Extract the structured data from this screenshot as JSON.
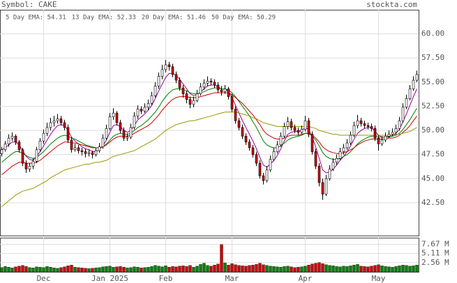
{
  "chart_data": {
    "type": "candlestick",
    "title": "Symbol: CAKE",
    "source": "stockta.com",
    "categories": [
      null,
      null,
      null,
      null,
      null,
      null,
      null,
      null,
      null,
      null,
      null,
      null,
      "Dec",
      null,
      null,
      null,
      null,
      null,
      null,
      null,
      null,
      null,
      null,
      null,
      null,
      null,
      null,
      null,
      null,
      null,
      null,
      "Jan 2025",
      null,
      null,
      null,
      null,
      null,
      null,
      null,
      null,
      null,
      null,
      null,
      null,
      null,
      null,
      null,
      "Feb",
      null,
      null,
      null,
      null,
      null,
      null,
      null,
      null,
      null,
      null,
      null,
      null,
      null,
      null,
      null,
      null,
      null,
      null,
      "Mar",
      null,
      null,
      null,
      null,
      null,
      null,
      null,
      null,
      null,
      null,
      null,
      null,
      null,
      null,
      null,
      null,
      null,
      null,
      null,
      null,
      "Apr",
      null,
      null,
      null,
      null,
      null,
      null,
      null,
      null,
      null,
      null,
      null,
      null,
      null,
      null,
      null,
      null,
      null,
      null,
      null,
      null,
      "May",
      null,
      null,
      null,
      null,
      null,
      null,
      null,
      null,
      null,
      null,
      null
    ],
    "open": [
      47.6,
      48.0,
      48.6,
      49.2,
      49.4,
      48.8,
      48.0,
      46.6,
      46.0,
      46.3,
      46.8,
      48.0,
      48.9,
      49.7,
      50.3,
      50.8,
      51.0,
      51.2,
      50.8,
      50.3,
      49.0,
      48.0,
      48.2,
      47.9,
      47.8,
      47.6,
      47.7,
      47.5,
      47.9,
      48.3,
      49.2,
      50.2,
      51.4,
      51.8,
      50.8,
      50.0,
      49.2,
      49.3,
      50.3,
      51.5,
      52.2,
      52.0,
      52.4,
      52.8,
      53.6,
      54.6,
      55.6,
      56.3,
      56.8,
      56.6,
      55.8,
      55.2,
      54.4,
      53.8,
      53.2,
      52.7,
      53.1,
      53.8,
      54.5,
      54.9,
      55.1,
      55.0,
      54.7,
      54.2,
      54.0,
      54.3,
      53.5,
      52.2,
      51.0,
      50.3,
      49.4,
      48.8,
      48.2,
      47.5,
      46.6,
      45.3,
      44.8,
      45.9,
      47.0,
      47.8,
      48.5,
      49.4,
      50.4,
      50.9,
      50.3,
      50.0,
      49.8,
      50.1,
      51.0,
      49.6,
      47.8,
      46.3,
      44.6,
      43.4,
      45.0,
      46.0,
      46.7,
      47.1,
      47.8,
      48.2,
      48.7,
      49.5,
      50.5,
      51.0,
      50.7,
      50.5,
      50.4,
      50.2,
      49.2,
      48.6,
      49.0,
      49.4,
      49.6,
      49.8,
      50.2,
      51.0,
      52.4,
      53.3,
      54.3,
      55.2
    ],
    "high": [
      48.3,
      48.9,
      49.6,
      49.8,
      49.6,
      49.0,
      48.2,
      46.9,
      46.6,
      47.1,
      48.3,
      49.2,
      50.1,
      50.8,
      51.3,
      51.5,
      51.7,
      51.5,
      51.1,
      50.6,
      49.3,
      48.6,
      48.5,
      48.2,
      48.1,
      48.0,
      47.9,
      48.2,
      48.7,
      49.6,
      50.6,
      51.8,
      52.3,
      52.0,
      51.1,
      50.3,
      49.7,
      50.7,
      51.9,
      52.6,
      52.5,
      52.8,
      53.2,
      54.0,
      55.0,
      56.0,
      56.8,
      57.3,
      57.1,
      56.9,
      56.1,
      55.5,
      54.7,
      54.1,
      53.5,
      53.5,
      54.2,
      54.9,
      55.3,
      55.6,
      55.4,
      55.3,
      55.0,
      54.6,
      54.7,
      54.5,
      53.8,
      52.5,
      51.3,
      50.6,
      49.7,
      49.1,
      48.5,
      47.8,
      46.9,
      45.6,
      46.3,
      47.4,
      48.2,
      48.9,
      49.8,
      50.8,
      51.4,
      51.2,
      50.6,
      50.3,
      50.5,
      51.5,
      51.3,
      49.9,
      48.1,
      46.6,
      45.0,
      45.4,
      46.4,
      47.1,
      47.5,
      48.2,
      48.6,
      49.1,
      49.9,
      50.9,
      51.6,
      51.3,
      51.0,
      50.8,
      50.7,
      50.5,
      49.5,
      49.4,
      49.8,
      50.0,
      50.2,
      50.6,
      51.4,
      52.8,
      53.7,
      54.7,
      55.6,
      56.2
    ],
    "low": [
      47.3,
      47.8,
      48.3,
      48.9,
      48.5,
      47.7,
      46.3,
      45.6,
      45.7,
      46.0,
      46.6,
      47.8,
      48.6,
      49.4,
      50.0,
      50.4,
      50.7,
      50.5,
      50.0,
      48.7,
      47.7,
      47.8,
      47.6,
      47.4,
      47.2,
      47.3,
      47.1,
      47.3,
      47.7,
      48.1,
      49.0,
      50.0,
      51.1,
      50.5,
      49.7,
      48.9,
      48.9,
      49.1,
      50.1,
      51.2,
      51.7,
      51.8,
      52.1,
      52.6,
      53.4,
      54.3,
      55.3,
      56.0,
      56.2,
      55.5,
      54.9,
      54.1,
      53.4,
      52.8,
      52.3,
      52.4,
      52.9,
      53.6,
      54.2,
      54.6,
      54.7,
      54.4,
      53.9,
      53.6,
      53.8,
      53.2,
      51.9,
      50.7,
      50.0,
      49.1,
      48.5,
      47.9,
      47.2,
      46.3,
      45.0,
      44.4,
      44.6,
      45.7,
      46.8,
      47.6,
      48.3,
      49.2,
      50.1,
      50.0,
      49.7,
      49.5,
      49.6,
      49.9,
      49.3,
      47.5,
      46.0,
      44.2,
      42.8,
      43.2,
      44.8,
      45.8,
      46.4,
      46.9,
      47.5,
      48.0,
      48.5,
      49.3,
      50.2,
      50.4,
      50.2,
      50.1,
      49.9,
      48.9,
      47.9,
      48.4,
      48.8,
      49.2,
      49.4,
      49.6,
      50.0,
      50.8,
      52.2,
      53.1,
      54.1,
      55.0
    ],
    "close": [
      48.0,
      48.6,
      49.2,
      49.4,
      48.8,
      48.0,
      46.6,
      46.0,
      46.3,
      46.8,
      48.0,
      48.9,
      49.7,
      50.3,
      50.8,
      51.0,
      51.2,
      50.8,
      50.3,
      49.0,
      48.0,
      48.2,
      47.9,
      47.8,
      47.6,
      47.7,
      47.5,
      47.9,
      48.3,
      49.2,
      50.2,
      51.4,
      51.8,
      50.8,
      50.0,
      49.2,
      49.3,
      50.3,
      51.5,
      52.2,
      52.0,
      52.4,
      52.8,
      53.6,
      54.6,
      55.6,
      56.3,
      56.8,
      56.6,
      55.8,
      55.2,
      54.4,
      53.8,
      53.2,
      52.7,
      53.1,
      53.8,
      54.5,
      54.9,
      55.1,
      55.0,
      54.7,
      54.2,
      54.0,
      54.3,
      53.5,
      52.2,
      51.0,
      50.3,
      49.4,
      48.8,
      48.2,
      47.5,
      46.6,
      45.3,
      44.8,
      45.9,
      47.0,
      47.8,
      48.5,
      49.4,
      50.4,
      50.9,
      50.3,
      50.0,
      49.8,
      50.1,
      51.0,
      49.6,
      47.8,
      46.3,
      44.6,
      43.4,
      45.0,
      46.0,
      46.7,
      47.1,
      47.8,
      48.2,
      48.7,
      49.5,
      50.5,
      51.0,
      50.7,
      50.5,
      50.4,
      50.2,
      49.2,
      48.6,
      49.0,
      49.4,
      49.6,
      49.8,
      50.2,
      51.0,
      52.4,
      53.3,
      54.3,
      55.2,
      55.8
    ],
    "up_color": "#ffffff",
    "down_color": "#cc0000",
    "ylim": [
      39.1,
      62.5
    ],
    "yticks": [
      {
        "value": 42.5,
        "label": "42.50"
      },
      {
        "value": 45,
        "label": "45.00"
      },
      {
        "value": 47.5,
        "label": "47.50"
      },
      {
        "value": 50,
        "label": "50.00"
      },
      {
        "value": 52.5,
        "label": "52.50"
      },
      {
        "value": 55,
        "label": "55.00"
      },
      {
        "value": 57.5,
        "label": "57.50"
      },
      {
        "value": 60,
        "label": "60.00"
      }
    ],
    "grid": true,
    "series": [
      {
        "name": "5 Day EMA: 54.31",
        "color": "#990099",
        "values": [
          48.0,
          48.2,
          48.5,
          48.8,
          48.8,
          48.5,
          47.9,
          47.3,
          47.0,
          46.9,
          47.3,
          47.8,
          48.4,
          49.0,
          49.6,
          50.1,
          50.5,
          50.6,
          50.5,
          50.0,
          49.3,
          48.9,
          48.6,
          48.3,
          48.1,
          48.0,
          47.8,
          47.8,
          48.0,
          48.4,
          49.0,
          49.8,
          50.5,
          50.6,
          50.4,
          50.0,
          49.8,
          50.0,
          50.5,
          51.1,
          51.4,
          51.7,
          52.1,
          52.6,
          53.3,
          54.1,
          54.8,
          55.5,
          55.9,
          55.9,
          55.7,
          55.3,
          54.8,
          54.3,
          53.8,
          53.6,
          53.7,
          54.0,
          54.3,
          54.6,
          54.7,
          54.7,
          54.5,
          54.3,
          54.3,
          54.0,
          53.4,
          52.6,
          51.8,
          51.0,
          50.3,
          49.6,
          48.9,
          48.1,
          47.2,
          46.4,
          46.2,
          46.5,
          46.9,
          47.4,
          48.1,
          48.9,
          49.6,
          49.8,
          49.9,
          49.9,
          50.0,
          50.3,
          50.1,
          49.3,
          48.3,
          47.1,
          45.9,
          45.6,
          45.7,
          46.0,
          46.4,
          46.9,
          47.3,
          47.8,
          48.4,
          49.1,
          49.7,
          50.0,
          50.2,
          50.3,
          50.3,
          49.9,
          49.5,
          49.3,
          49.3,
          49.4,
          49.5,
          49.7,
          50.1,
          50.9,
          51.7,
          52.6,
          53.5,
          54.3
        ]
      },
      {
        "name": "13 Day EMA: 52.33",
        "color": "#008000",
        "values": [
          46.7,
          47.0,
          47.3,
          47.6,
          47.8,
          47.8,
          47.6,
          47.4,
          47.2,
          47.1,
          47.2,
          47.5,
          47.8,
          48.2,
          48.6,
          48.9,
          49.2,
          49.4,
          49.5,
          49.4,
          49.2,
          49.1,
          48.9,
          48.7,
          48.5,
          48.4,
          48.3,
          48.2,
          48.2,
          48.3,
          48.6,
          49.0,
          49.4,
          49.6,
          49.7,
          49.6,
          49.6,
          49.7,
          50.0,
          50.3,
          50.5,
          50.8,
          51.1,
          51.5,
          51.9,
          52.4,
          53.0,
          53.5,
          53.9,
          54.2,
          54.3,
          54.3,
          54.2,
          54.1,
          53.9,
          53.8,
          53.8,
          53.9,
          54.0,
          54.2,
          54.3,
          54.4,
          54.4,
          54.3,
          54.3,
          54.2,
          53.9,
          53.5,
          53.0,
          52.5,
          52.0,
          51.5,
          50.9,
          50.3,
          49.6,
          48.9,
          48.5,
          48.3,
          48.2,
          48.2,
          48.4,
          48.7,
          49.0,
          49.2,
          49.3,
          49.4,
          49.5,
          49.7,
          49.7,
          49.4,
          49.0,
          48.4,
          47.7,
          47.3,
          47.1,
          47.0,
          47.0,
          47.1,
          47.3,
          47.5,
          47.8,
          48.2,
          48.6,
          48.9,
          49.1,
          49.3,
          49.4,
          49.4,
          49.3,
          49.3,
          49.3,
          49.3,
          49.4,
          49.5,
          49.7,
          50.1,
          50.6,
          51.1,
          51.7,
          52.3
        ]
      },
      {
        "name": "20 Day EMA: 51.46",
        "color": "#cc0000",
        "values": [
          45.4,
          45.7,
          46.0,
          46.3,
          46.5,
          46.7,
          46.7,
          46.6,
          46.6,
          46.6,
          46.7,
          46.9,
          47.2,
          47.5,
          47.8,
          48.1,
          48.4,
          48.6,
          48.8,
          48.8,
          48.7,
          48.7,
          48.6,
          48.5,
          48.4,
          48.3,
          48.2,
          48.2,
          48.2,
          48.3,
          48.5,
          48.8,
          49.1,
          49.3,
          49.4,
          49.4,
          49.4,
          49.5,
          49.7,
          49.9,
          50.1,
          50.3,
          50.5,
          50.8,
          51.2,
          51.6,
          52.1,
          52.5,
          52.9,
          53.2,
          53.4,
          53.5,
          53.5,
          53.5,
          53.4,
          53.4,
          53.4,
          53.5,
          53.6,
          53.7,
          53.8,
          53.9,
          53.9,
          53.9,
          53.9,
          53.9,
          53.7,
          53.4,
          53.1,
          52.8,
          52.4,
          52.0,
          51.6,
          51.1,
          50.6,
          50.0,
          49.6,
          49.4,
          49.2,
          49.1,
          49.1,
          49.2,
          49.4,
          49.5,
          49.5,
          49.5,
          49.6,
          49.7,
          49.7,
          49.5,
          49.2,
          48.8,
          48.3,
          48.0,
          47.8,
          47.7,
          47.6,
          47.6,
          47.7,
          47.8,
          48.0,
          48.2,
          48.5,
          48.7,
          48.9,
          49.0,
          49.1,
          49.1,
          49.1,
          49.1,
          49.1,
          49.2,
          49.2,
          49.3,
          49.5,
          49.8,
          50.1,
          50.5,
          51.0,
          51.5
        ]
      },
      {
        "name": "50 Day EMA: 50.29",
        "color": "#999900",
        "values": [
          42.1,
          42.4,
          42.7,
          43.0,
          43.3,
          43.5,
          43.7,
          43.8,
          43.9,
          44.0,
          44.2,
          44.4,
          44.6,
          44.8,
          45.1,
          45.3,
          45.5,
          45.7,
          45.9,
          46.0,
          46.1,
          46.2,
          46.3,
          46.4,
          46.5,
          46.5,
          46.6,
          46.7,
          46.7,
          46.8,
          46.9,
          47.1,
          47.3,
          47.4,
          47.5,
          47.6,
          47.7,
          47.8,
          47.9,
          48.1,
          48.3,
          48.5,
          48.7,
          48.9,
          49.1,
          49.4,
          49.7,
          50.0,
          50.2,
          50.4,
          50.6,
          50.7,
          50.8,
          50.9,
          51.0,
          51.0,
          51.1,
          51.2,
          51.3,
          51.4,
          51.5,
          51.6,
          51.7,
          51.8,
          51.9,
          51.9,
          51.9,
          51.9,
          51.8,
          51.7,
          51.6,
          51.5,
          51.3,
          51.2,
          51.0,
          50.8,
          50.7,
          50.6,
          50.5,
          50.4,
          50.4,
          50.4,
          50.4,
          50.4,
          50.4,
          50.4,
          50.4,
          50.4,
          50.4,
          50.3,
          50.2,
          50.0,
          49.9,
          49.8,
          49.7,
          49.6,
          49.6,
          49.5,
          49.5,
          49.5,
          49.5,
          49.5,
          49.5,
          49.5,
          49.5,
          49.5,
          49.5,
          49.5,
          49.5,
          49.5,
          49.5,
          49.5,
          49.5,
          49.6,
          49.6,
          49.7,
          49.8,
          49.9,
          50.1,
          50.3
        ]
      }
    ],
    "volume": {
      "values": [
        1.2,
        1.5,
        1.3,
        1.1,
        1.4,
        1.6,
        1.8,
        1.5,
        1.2,
        1.1,
        1.4,
        1.3,
        1.2,
        1.5,
        1.3,
        1.1,
        1.0,
        1.2,
        1.4,
        1.7,
        1.9,
        1.3,
        1.2,
        1.1,
        1.0,
        0.9,
        1.0,
        1.1,
        1.2,
        1.4,
        1.5,
        1.6,
        1.3,
        1.4,
        1.5,
        1.3,
        1.1,
        1.2,
        1.4,
        1.3,
        1.1,
        1.2,
        1.3,
        1.5,
        1.8,
        1.6,
        1.4,
        1.7,
        1.3,
        1.5,
        1.4,
        1.6,
        1.7,
        1.5,
        1.8,
        1.3,
        1.6,
        2.1,
        2.4,
        1.8,
        1.6,
        1.9,
        2.2,
        7.6,
        2.5,
        1.9,
        2.3,
        2.0,
        1.8,
        1.7,
        1.6,
        1.8,
        1.9,
        2.1,
        2.4,
        2.0,
        1.8,
        1.6,
        1.5,
        1.4,
        1.3,
        1.5,
        1.6,
        1.4,
        1.2,
        1.3,
        1.4,
        1.6,
        1.9,
        2.2,
        2.4,
        2.6,
        2.3,
        2.0,
        1.8,
        1.7,
        1.5,
        1.4,
        1.6,
        1.5,
        1.7,
        1.9,
        2.1,
        1.6,
        1.5,
        1.4,
        1.6,
        1.8,
        2.0,
        1.7,
        1.5,
        1.4,
        1.3,
        1.5,
        1.7,
        1.9,
        1.8,
        1.6,
        1.7,
        1.9
      ],
      "up_color": "#008000",
      "down_color": "#cc0000",
      "ylim": [
        0,
        9.5
      ],
      "yticks": [
        {
          "value": 2.56,
          "label": "2.56 M"
        },
        {
          "value": 5.11,
          "label": "5.11 M"
        },
        {
          "value": 7.67,
          "label": "7.67 M"
        }
      ]
    }
  }
}
